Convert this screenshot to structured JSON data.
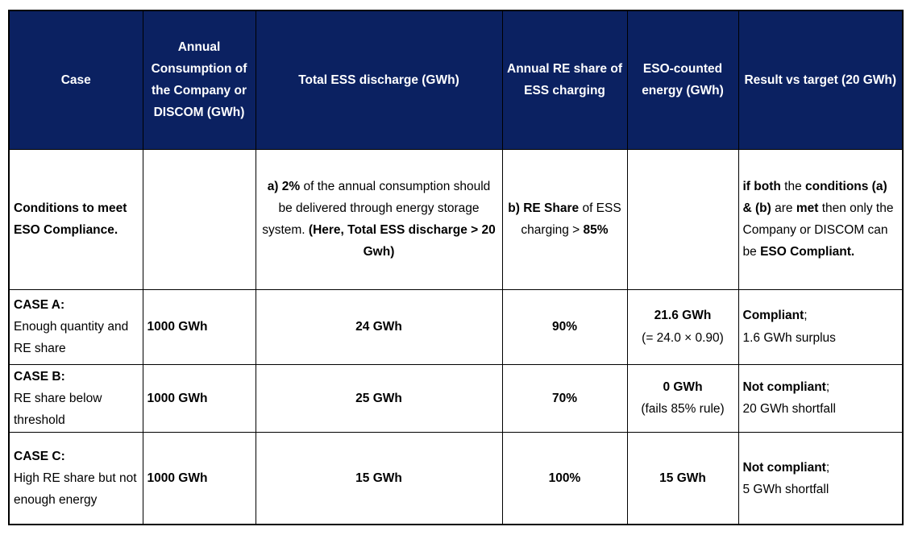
{
  "table": {
    "colors": {
      "page_bg": "#ffffff",
      "header_bg": "#0b2161",
      "header_text": "#ffffff",
      "body_text": "#000000",
      "border": "#000000"
    },
    "columns": [
      {
        "id": "case",
        "label": "Case"
      },
      {
        "id": "annual-consumption",
        "label": "Annual Consumption of the Company or DISCOM (GWh)"
      },
      {
        "id": "ess-discharge",
        "label": "Total ESS discharge (GWh)"
      },
      {
        "id": "re-share",
        "label": "Annual RE share of ESS charging"
      },
      {
        "id": "eso-counted",
        "label": "ESO-counted energy (GWh)"
      },
      {
        "id": "result",
        "label": "Result vs target (20 GWh)"
      }
    ],
    "rows": [
      {
        "name": "conditions",
        "cells": [
          {
            "runs": [
              {
                "text": "Conditions to meet ESO Compliance.",
                "bold": true
              }
            ]
          },
          {
            "runs": []
          },
          {
            "runs": [
              {
                "text": "a) 2%",
                "bold": true
              },
              {
                "text": " of the annual consumption should be delivered through energy storage system. ",
                "bold": false
              },
              {
                "text": "(Here, Total ESS discharge > 20 Gwh)",
                "bold": true
              }
            ]
          },
          {
            "runs": [
              {
                "text": "b) RE Share",
                "bold": true
              },
              {
                "text": " of ESS charging > ",
                "bold": false
              },
              {
                "text": "85%",
                "bold": true
              }
            ]
          },
          {
            "runs": []
          },
          {
            "runs": [
              {
                "text": "if both",
                "bold": true
              },
              {
                "text": " the ",
                "bold": false
              },
              {
                "text": "conditions (a) & (b)",
                "bold": true
              },
              {
                "text": " are ",
                "bold": false
              },
              {
                "text": "met",
                "bold": true
              },
              {
                "text": " then only the Company or DISCOM can  be ",
                "bold": false
              },
              {
                "text": "ESO Compliant.",
                "bold": true
              }
            ]
          }
        ]
      },
      {
        "name": "case-a",
        "cells": [
          {
            "runs": [
              {
                "text": "CASE A:",
                "bold": true
              },
              {
                "text": "\nEnough quantity and RE share",
                "bold": false
              }
            ]
          },
          {
            "runs": [
              {
                "text": "1000 GWh",
                "bold": true
              }
            ]
          },
          {
            "runs": [
              {
                "text": "24 GWh",
                "bold": true
              }
            ]
          },
          {
            "runs": [
              {
                "text": "90%",
                "bold": true
              }
            ]
          },
          {
            "runs": [
              {
                "text": "21.6 GWh",
                "bold": true
              },
              {
                "text": "\n(= 24.0 × 0.90)",
                "bold": false
              }
            ]
          },
          {
            "runs": [
              {
                "text": "Compliant",
                "bold": true
              },
              {
                "text": ";\n1.6 GWh surplus",
                "bold": false
              }
            ]
          }
        ]
      },
      {
        "name": "case-b",
        "cells": [
          {
            "runs": [
              {
                "text": "CASE B:",
                "bold": true
              },
              {
                "text": "\nRE share below threshold",
                "bold": false
              }
            ]
          },
          {
            "runs": [
              {
                "text": "1000 GWh",
                "bold": true
              }
            ]
          },
          {
            "runs": [
              {
                "text": "25 GWh",
                "bold": true
              }
            ]
          },
          {
            "runs": [
              {
                "text": "70%",
                "bold": true
              }
            ]
          },
          {
            "runs": [
              {
                "text": "0 GWh",
                "bold": true
              },
              {
                "text": "\n(fails 85% rule)",
                "bold": false
              }
            ]
          },
          {
            "runs": [
              {
                "text": "Not compliant",
                "bold": true
              },
              {
                "text": ";\n20 GWh shortfall",
                "bold": false
              }
            ]
          }
        ]
      },
      {
        "name": "case-c",
        "cells": [
          {
            "runs": [
              {
                "text": "CASE C:",
                "bold": true
              },
              {
                "text": "\nHigh RE share but not enough energy",
                "bold": false
              }
            ]
          },
          {
            "runs": [
              {
                "text": "1000 GWh",
                "bold": true
              }
            ]
          },
          {
            "runs": [
              {
                "text": "15 GWh",
                "bold": true
              }
            ]
          },
          {
            "runs": [
              {
                "text": "100%",
                "bold": true
              }
            ]
          },
          {
            "runs": [
              {
                "text": "15 GWh",
                "bold": true
              }
            ]
          },
          {
            "runs": [
              {
                "text": "Not compliant",
                "bold": true
              },
              {
                "text": ";\n5 GWh shortfall",
                "bold": false
              }
            ]
          }
        ]
      }
    ]
  }
}
